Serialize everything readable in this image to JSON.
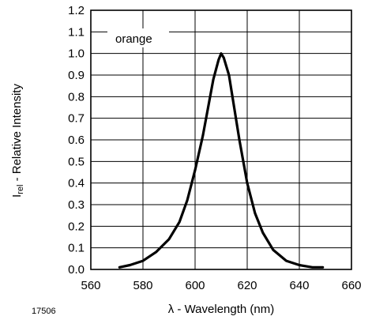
{
  "chart_data": {
    "type": "line",
    "title": "",
    "xlabel": "λ - Wavelength (nm)",
    "ylabel_main": "I",
    "ylabel_sub": "rel",
    "ylabel_rest": " - Relative Intensity",
    "xlim": [
      560,
      660
    ],
    "ylim": [
      0.0,
      1.2
    ],
    "xticks": [
      "560",
      "580",
      "600",
      "620",
      "640",
      "660"
    ],
    "yticks": [
      "0.0",
      "0.1",
      "0.2",
      "0.3",
      "0.4",
      "0.5",
      "0.6",
      "0.7",
      "0.8",
      "0.9",
      "1.0",
      "1.1",
      "1.2"
    ],
    "grid": true,
    "legend_placement": "top-left",
    "figure_id": "17506",
    "series": [
      {
        "name": "orange",
        "x": [
          571,
          575,
          580,
          585,
          590,
          594,
          597,
          600,
          603,
          605,
          607,
          609,
          610,
          611,
          613,
          615,
          617,
          620,
          623,
          626,
          630,
          635,
          640,
          645,
          649
        ],
        "y": [
          0.01,
          0.02,
          0.04,
          0.08,
          0.14,
          0.22,
          0.32,
          0.46,
          0.62,
          0.75,
          0.88,
          0.97,
          1.0,
          0.98,
          0.9,
          0.75,
          0.6,
          0.4,
          0.26,
          0.17,
          0.09,
          0.04,
          0.02,
          0.01,
          0.01
        ]
      }
    ]
  }
}
